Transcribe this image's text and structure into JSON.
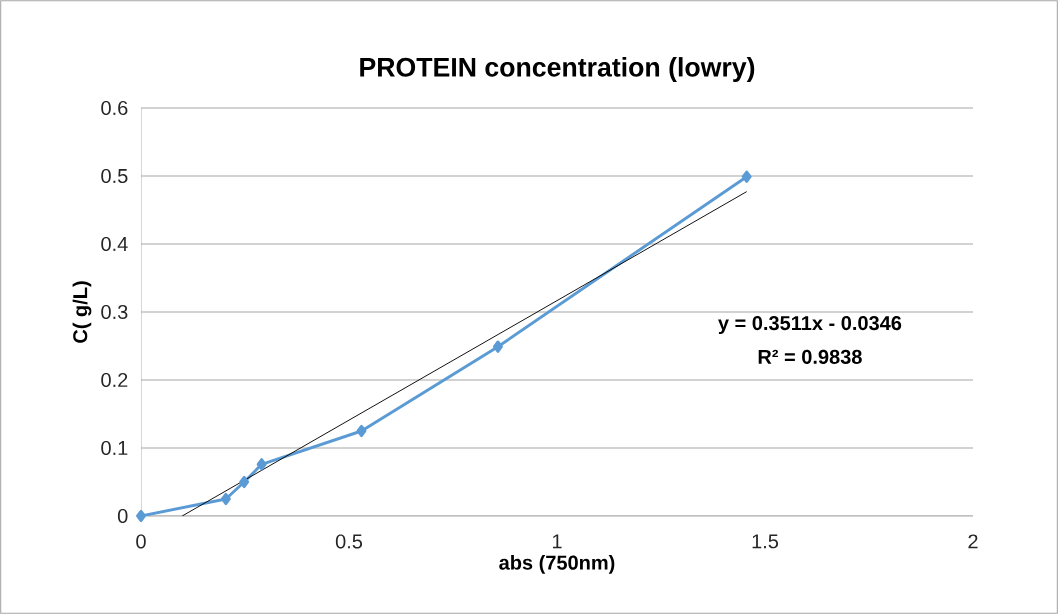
{
  "chart_data": {
    "type": "line",
    "title": "PROTEIN concentration (lowry)",
    "xlabel": "abs (750nm)",
    "ylabel": "C( g/L)",
    "series": [
      {
        "color": "#5b9bd5",
        "marker": "diamond",
        "x": [
          0,
          0.204,
          0.248,
          0.29,
          0.53,
          0.858,
          1.456
        ],
        "values": [
          0,
          0.025,
          0.05,
          0.076,
          0.125,
          0.249,
          0.499
        ]
      },
      {
        "type": "line",
        "color": "#000000",
        "marker": "none",
        "x": [
          0.099,
          1.456
        ],
        "values": [
          0,
          0.477
        ]
      }
    ],
    "xlim": [
      0,
      2
    ],
    "xticks": [
      0,
      0.5,
      1,
      1.5,
      2
    ],
    "ylim": [
      0,
      0.6
    ],
    "yticks": [
      0,
      0.1,
      0.2,
      0.3,
      0.4,
      0.5,
      0.6
    ],
    "grid": "y",
    "line_style": "solid",
    "annotations": [
      "y = 0.3511x - 0.0346",
      "R² = 0.9838"
    ]
  }
}
